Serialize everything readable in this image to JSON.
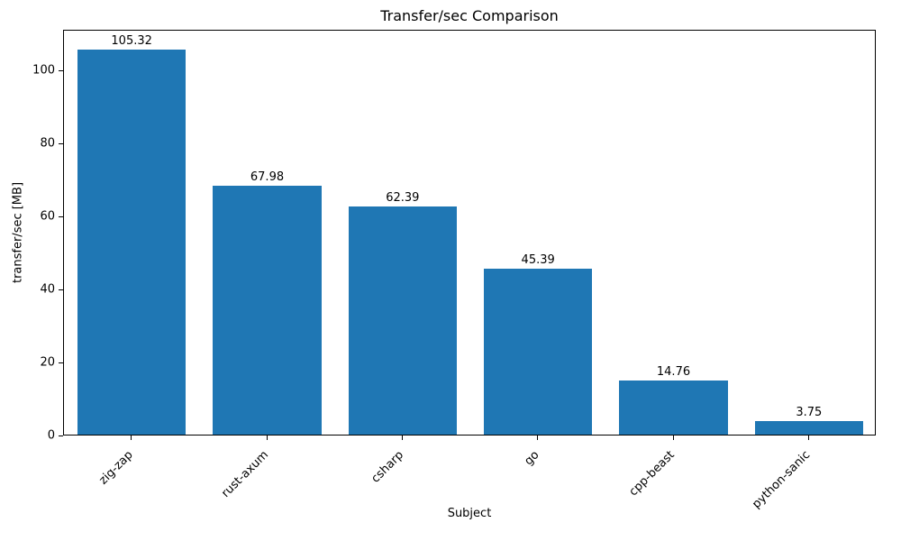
{
  "chart_data": {
    "type": "bar",
    "title": "Transfer/sec Comparison",
    "xlabel": "Subject",
    "ylabel": "transfer/sec [MB]",
    "categories": [
      "zig-zap",
      "rust-axum",
      "csharp",
      "go",
      "cpp-beast",
      "python-sanic"
    ],
    "values": [
      105.32,
      67.98,
      62.39,
      45.39,
      14.76,
      3.75
    ],
    "ylim": [
      0,
      111
    ],
    "yticks": [
      0,
      20,
      40,
      60,
      80,
      100
    ],
    "bar_color": "#1f77b4",
    "bar_width_fraction": 0.8,
    "grid": false,
    "legend": "none",
    "value_labels_shown": true
  }
}
